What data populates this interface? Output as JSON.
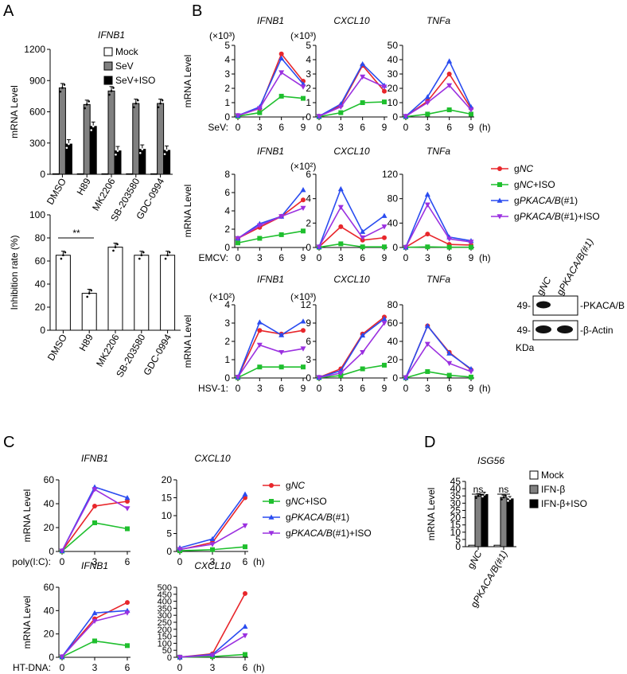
{
  "panels": {
    "A": "A",
    "B": "B",
    "C": "C",
    "D": "D"
  },
  "colors": {
    "gNC": "#e8262b",
    "gNC_ISO": "#1fbf2e",
    "gPKACA": "#2a4cf0",
    "gPKACA_ISO": "#9b30e0",
    "mock": "#ffffff",
    "sev_gray": "#808080",
    "black": "#000000"
  },
  "series_styles": [
    {
      "key": "gNC",
      "marker": "circle"
    },
    {
      "key": "gNC_ISO",
      "marker": "square"
    },
    {
      "key": "gPKACA",
      "marker": "triangle-up"
    },
    {
      "key": "gPKACA_ISO",
      "marker": "triangle-down"
    }
  ],
  "legend_lines": {
    "series": [
      {
        "pre": "g",
        "it": "NC",
        "post": ""
      },
      {
        "pre": "g",
        "it": "NC",
        "post": "+ISO"
      },
      {
        "pre": "g",
        "it": "PKACA/B",
        "post": "(#1)"
      },
      {
        "pre": "g",
        "it": "PKACA/B",
        "post": "(#1)+ISO"
      }
    ]
  },
  "hours_label": "(h)",
  "western_blot": {
    "lanes": [
      "gNC",
      "gPKACA/B(#1)"
    ],
    "lane_parts": [
      {
        "pre": "g",
        "it": "NC"
      },
      {
        "pre": "g",
        "it": "PKACA/B(#1)"
      }
    ],
    "rows": [
      {
        "marker": "49-",
        "label": "-PKACA/B"
      },
      {
        "marker": "49-",
        "label": "-β-Actin"
      }
    ],
    "unit": "KDa"
  },
  "chart_data": [
    {
      "id": "A_top",
      "type": "bar",
      "title": "IFNB1",
      "ylabel": "mRNA Level",
      "categories": [
        "DMSO",
        "H89",
        "MK2206",
        "SB-203580",
        "GDC-0994"
      ],
      "yticks": [
        0,
        300,
        600,
        900,
        1200
      ],
      "ylim": [
        0,
        1200
      ],
      "series": [
        {
          "name": "Mock",
          "values": [
            5,
            5,
            5,
            5,
            5
          ]
        },
        {
          "name": "SeV",
          "values": [
            830,
            670,
            800,
            680,
            680
          ]
        },
        {
          "name": "SeV+ISO",
          "values": [
            290,
            460,
            225,
            240,
            230
          ]
        }
      ]
    },
    {
      "id": "A_bottom",
      "type": "bar",
      "title": "",
      "ylabel": "Inhibition rate (%)",
      "categories": [
        "DMSO",
        "H89",
        "MK2206",
        "SB-203580",
        "GDC-0994"
      ],
      "yticks": [
        0,
        20,
        40,
        60,
        80,
        100
      ],
      "ylim": [
        0,
        100
      ],
      "values": [
        65,
        32,
        72,
        65,
        65
      ],
      "annotation": "**"
    },
    {
      "id": "B_SeV_IFNB1",
      "type": "line",
      "title": "IFNB1",
      "multiplier": "(×10³)",
      "ylabel": "mRNA Level",
      "stimulus": "SeV:",
      "x": [
        0,
        3,
        6,
        9
      ],
      "yticks": [
        0,
        1,
        2,
        3,
        4,
        5
      ],
      "ylim": [
        0,
        5
      ],
      "series": [
        {
          "name": "gNC",
          "values": [
            0.1,
            0.6,
            4.4,
            2.5
          ]
        },
        {
          "name": "gNC+ISO",
          "values": [
            0.05,
            0.3,
            1.45,
            1.3
          ]
        },
        {
          "name": "gPKACA/B(#1)",
          "values": [
            0.1,
            0.7,
            4.1,
            2.3
          ]
        },
        {
          "name": "gPKACA/B(#1)+ISO",
          "values": [
            0.1,
            0.6,
            3.1,
            2.1
          ]
        }
      ]
    },
    {
      "id": "B_SeV_CXCL10",
      "type": "line",
      "title": "CXCL10",
      "multiplier": "(×10³)",
      "stimulus": "",
      "x": [
        0,
        3,
        6,
        9
      ],
      "yticks": [
        0,
        1,
        2,
        3,
        4,
        5
      ],
      "ylim": [
        0,
        5
      ],
      "series": [
        {
          "name": "gNC",
          "values": [
            0.05,
            0.8,
            3.6,
            1.8
          ]
        },
        {
          "name": "gNC+ISO",
          "values": [
            0.02,
            0.3,
            1.0,
            1.05
          ]
        },
        {
          "name": "gPKACA/B(#1)",
          "values": [
            0.05,
            0.9,
            3.7,
            2.2
          ]
        },
        {
          "name": "gPKACA/B(#1)+ISO",
          "values": [
            0.05,
            0.7,
            2.8,
            2.1
          ]
        }
      ]
    },
    {
      "id": "B_SeV_TNFa",
      "type": "line",
      "title": "TNFa",
      "stimulus": "",
      "x": [
        0,
        3,
        6,
        9
      ],
      "yticks": [
        0,
        10,
        20,
        30,
        40,
        50
      ],
      "ylim": [
        0,
        50
      ],
      "series": [
        {
          "name": "gNC",
          "values": [
            0.5,
            11,
            30,
            6
          ]
        },
        {
          "name": "gNC+ISO",
          "values": [
            0.2,
            2,
            5,
            2
          ]
        },
        {
          "name": "gPKACA/B(#1)",
          "values": [
            0.5,
            14,
            39,
            7
          ]
        },
        {
          "name": "gPKACA/B(#1)+ISO",
          "values": [
            0.5,
            10,
            22,
            5
          ]
        }
      ]
    },
    {
      "id": "B_EMCV_IFNB1",
      "type": "line",
      "title": "IFNB1",
      "ylabel": "mRNA Level",
      "stimulus": "EMCV:",
      "x": [
        0,
        3,
        6,
        9
      ],
      "yticks": [
        0,
        2,
        4,
        6,
        8
      ],
      "ylim": [
        0,
        8
      ],
      "series": [
        {
          "name": "gNC",
          "values": [
            1.0,
            2.2,
            3.4,
            5.2
          ]
        },
        {
          "name": "gNC+ISO",
          "values": [
            0.5,
            1.0,
            1.4,
            1.8
          ]
        },
        {
          "name": "gPKACA/B(#1)",
          "values": [
            1.0,
            2.6,
            3.4,
            6.3
          ]
        },
        {
          "name": "gPKACA/B(#1)+ISO",
          "values": [
            1.0,
            2.4,
            3.4,
            4.3
          ]
        }
      ]
    },
    {
      "id": "B_EMCV_CXCL10",
      "type": "line",
      "title": "CXCL10",
      "multiplier": "(×10²)",
      "stimulus": "",
      "x": [
        0,
        3,
        6,
        9
      ],
      "yticks": [
        0,
        2,
        4,
        6
      ],
      "ylim": [
        0,
        6
      ],
      "series": [
        {
          "name": "gNC",
          "values": [
            0.05,
            1.7,
            0.6,
            0.8
          ]
        },
        {
          "name": "gNC+ISO",
          "values": [
            0.02,
            0.3,
            0.05,
            0.05
          ]
        },
        {
          "name": "gPKACA/B(#1)",
          "values": [
            0.05,
            4.8,
            1.3,
            2.6
          ]
        },
        {
          "name": "gPKACA/B(#1)+ISO",
          "values": [
            0.05,
            3.3,
            0.8,
            1.7
          ]
        }
      ]
    },
    {
      "id": "B_EMCV_TNFa",
      "type": "line",
      "title": "TNFa",
      "stimulus": "",
      "x": [
        0,
        3,
        6,
        9
      ],
      "yticks": [
        0,
        40,
        80,
        120
      ],
      "ylim": [
        0,
        120
      ],
      "series": [
        {
          "name": "gNC",
          "values": [
            0.5,
            22,
            5,
            4
          ]
        },
        {
          "name": "gNC+ISO",
          "values": [
            0.2,
            1,
            0.5,
            0.5
          ]
        },
        {
          "name": "gPKACA/B(#1)",
          "values": [
            0.5,
            87,
            17,
            11
          ]
        },
        {
          "name": "gPKACA/B(#1)+ISO",
          "values": [
            0.5,
            70,
            14,
            9
          ]
        }
      ]
    },
    {
      "id": "B_HSV_IFNB1",
      "type": "line",
      "title": "IFNB1",
      "multiplier": "(×10²)",
      "ylabel": "mRNA Level",
      "stimulus": "HSV-1:",
      "x": [
        0,
        3,
        6,
        9
      ],
      "yticks": [
        0,
        1,
        2,
        3,
        4
      ],
      "ylim": [
        0,
        4
      ],
      "series": [
        {
          "name": "gNC",
          "values": [
            0.05,
            2.6,
            2.4,
            2.6
          ]
        },
        {
          "name": "gNC+ISO",
          "values": [
            0.02,
            0.6,
            0.6,
            0.6
          ]
        },
        {
          "name": "gPKACA/B(#1)",
          "values": [
            0.05,
            3.05,
            2.35,
            3.1
          ]
        },
        {
          "name": "gPKACA/B(#1)+ISO",
          "values": [
            0.05,
            1.8,
            1.4,
            1.6
          ]
        }
      ]
    },
    {
      "id": "B_HSV_CXCL10",
      "type": "line",
      "title": "CXCL10",
      "multiplier": "(×10³)",
      "stimulus": "",
      "x": [
        0,
        3,
        6,
        9
      ],
      "yticks": [
        0,
        3,
        6,
        9,
        12
      ],
      "ylim": [
        0,
        12
      ],
      "series": [
        {
          "name": "gNC",
          "values": [
            0.1,
            1.5,
            7.2,
            10.0
          ]
        },
        {
          "name": "gNC+ISO",
          "values": [
            0.05,
            0.4,
            1.5,
            2.1
          ]
        },
        {
          "name": "gPKACA/B(#1)",
          "values": [
            0.1,
            1.2,
            7.0,
            9.7
          ]
        },
        {
          "name": "gPKACA/B(#1)+ISO",
          "values": [
            0.1,
            0.8,
            4.2,
            9.0
          ]
        }
      ]
    },
    {
      "id": "B_HSV_TNFa",
      "type": "line",
      "title": "TNFa",
      "stimulus": "",
      "x": [
        0,
        3,
        6,
        9
      ],
      "yticks": [
        0,
        20,
        40,
        60,
        80
      ],
      "ylim": [
        0,
        80
      ],
      "series": [
        {
          "name": "gNC",
          "values": [
            0.5,
            57,
            28,
            9
          ]
        },
        {
          "name": "gNC+ISO",
          "values": [
            0.2,
            7,
            3,
            1
          ]
        },
        {
          "name": "gPKACA/B(#1)",
          "values": [
            0.5,
            57,
            27,
            10
          ]
        },
        {
          "name": "gPKACA/B(#1)+ISO",
          "values": [
            0.5,
            37,
            16,
            7
          ]
        }
      ]
    },
    {
      "id": "C_poly_IFNB1",
      "type": "line",
      "title": "IFNB1",
      "ylabel": "mRNA Level",
      "stimulus": "poly(I:C):",
      "x": [
        0,
        3,
        6
      ],
      "yticks": [
        0,
        20,
        40,
        60
      ],
      "ylim": [
        0,
        60
      ],
      "series": [
        {
          "name": "gNC",
          "values": [
            0.5,
            38,
            42
          ]
        },
        {
          "name": "gNC+ISO",
          "values": [
            0.3,
            24,
            19
          ]
        },
        {
          "name": "gPKACA/B(#1)",
          "values": [
            0.5,
            54,
            45
          ]
        },
        {
          "name": "gPKACA/B(#1)+ISO",
          "values": [
            0.5,
            52,
            36
          ]
        }
      ]
    },
    {
      "id": "C_poly_CXCL10",
      "type": "line",
      "title": "CXCL10",
      "stimulus": "",
      "x": [
        0,
        3,
        6
      ],
      "yticks": [
        0,
        5,
        10,
        15,
        20
      ],
      "ylim": [
        0,
        20
      ],
      "series": [
        {
          "name": "gNC",
          "values": [
            0.5,
            2.5,
            15
          ]
        },
        {
          "name": "gNC+ISO",
          "values": [
            0.2,
            0.5,
            1.3
          ]
        },
        {
          "name": "gPKACA/B(#1)",
          "values": [
            1.0,
            3.5,
            16
          ]
        },
        {
          "name": "gPKACA/B(#1)+ISO",
          "values": [
            0.6,
            2.0,
            7.2
          ]
        }
      ]
    },
    {
      "id": "C_HT_IFNB1",
      "type": "line",
      "title": "IFNB1",
      "ylabel": "mRNA Level",
      "stimulus": "HT-DNA:",
      "x": [
        0,
        3,
        6
      ],
      "yticks": [
        0,
        20,
        40,
        60
      ],
      "ylim": [
        0,
        60
      ],
      "series": [
        {
          "name": "gNC",
          "values": [
            0.5,
            33,
            47
          ]
        },
        {
          "name": "gNC+ISO",
          "values": [
            0.3,
            14,
            10
          ]
        },
        {
          "name": "gPKACA/B(#1)",
          "values": [
            0.5,
            38,
            40
          ]
        },
        {
          "name": "gPKACA/B(#1)+ISO",
          "values": [
            0.5,
            31,
            38
          ]
        }
      ]
    },
    {
      "id": "C_HT_CXCL10",
      "type": "line",
      "title": "CXCL10",
      "stimulus": "",
      "x": [
        0,
        3,
        6
      ],
      "yticks": [
        0,
        50,
        100,
        150,
        200,
        250,
        300,
        350,
        400,
        450,
        500
      ],
      "ylim": [
        0,
        500
      ],
      "series": [
        {
          "name": "gNC",
          "values": [
            1,
            25,
            455
          ]
        },
        {
          "name": "gNC+ISO",
          "values": [
            1,
            5,
            20
          ]
        },
        {
          "name": "gPKACA/B(#1)",
          "values": [
            1,
            20,
            220
          ]
        },
        {
          "name": "gPKACA/B(#1)+ISO",
          "values": [
            1,
            15,
            155
          ]
        }
      ]
    },
    {
      "id": "D",
      "type": "bar",
      "title": "ISG56",
      "ylabel": "mRNA Level",
      "categories": [
        "gNC",
        "gPKACA/B(#1)"
      ],
      "category_parts": [
        {
          "pre": "g",
          "it": "NC"
        },
        {
          "pre": "g",
          "it": "PKACA/B(#1)"
        }
      ],
      "yticks": [
        0,
        5,
        10,
        15,
        20,
        25,
        30,
        35,
        40,
        45
      ],
      "ylim": [
        0,
        45
      ],
      "series": [
        {
          "name": "Mock",
          "values": [
            1,
            1
          ]
        },
        {
          "name": "IFN-β",
          "values": [
            35,
            34
          ]
        },
        {
          "name": "IFN-β+ISO",
          "values": [
            36,
            33
          ]
        }
      ],
      "annotations": [
        "ns",
        "ns"
      ]
    }
  ]
}
